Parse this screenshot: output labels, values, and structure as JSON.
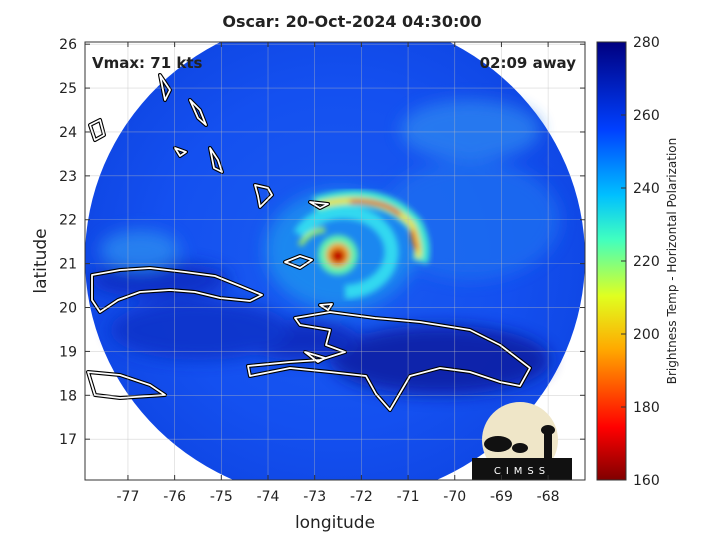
{
  "header": {
    "title": "Oscar: 20-Oct-2024 04:30:00"
  },
  "annotations": {
    "intensity": "Vmax: 71 kts",
    "time_offset": "02:09 away"
  },
  "axes": {
    "xlabel": "longitude",
    "ylabel": "latitude",
    "xlim": [
      -77.92,
      -67.21
    ],
    "xticks": [
      -77,
      -76,
      -75,
      -74,
      -73,
      -72,
      -71,
      -70,
      -69,
      -68
    ],
    "ylim": [
      16.07,
      26.05
    ],
    "yticks": [
      17,
      18,
      19,
      20,
      21,
      22,
      23,
      24,
      25,
      26
    ]
  },
  "colorbar": {
    "label": "Brightness Temp - Horizontal Polarization",
    "lim": [
      160,
      280
    ],
    "ticks": [
      160,
      180,
      200,
      220,
      240,
      260,
      280
    ]
  },
  "logo": {
    "text": "CIMSS"
  }
}
